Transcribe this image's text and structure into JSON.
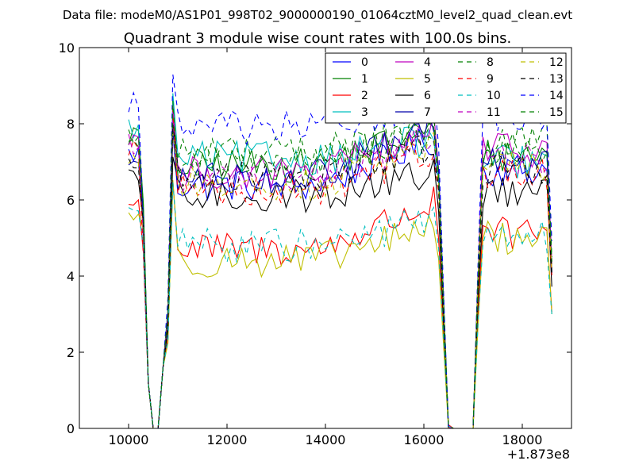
{
  "figure": {
    "suptitle": "Data file: modeM0/AS1P01_998T02_9000000190_01064cztM0_level2_quad_clean.evt",
    "offset_label": "+1.873e8"
  },
  "chart_data": {
    "type": "line",
    "title": "Quadrant 3 module wise count rates with 100.0s bins.",
    "xlabel": "",
    "ylabel": "",
    "xlim": [
      9000,
      19000
    ],
    "ylim": [
      0,
      10
    ],
    "x_ticks": [
      10000,
      12000,
      14000,
      16000,
      18000
    ],
    "y_ticks": [
      0,
      2,
      4,
      6,
      8,
      10
    ],
    "x_tick_labels": [
      "10000",
      "12000",
      "14000",
      "16000",
      "18000"
    ],
    "y_tick_labels": [
      "0",
      "2",
      "4",
      "6",
      "8",
      "10"
    ],
    "x_offset": 187300000,
    "legend_position": "upper-right",
    "legend_columns": 4,
    "segments": [
      {
        "start": 10000,
        "end": 10300,
        "step": 100
      },
      {
        "start": 10400,
        "end": 10700,
        "step": 100,
        "dropout": true
      },
      {
        "start": 10800,
        "end": 16200,
        "step": 100
      },
      {
        "start": 16300,
        "end": 16500,
        "step": 100,
        "fall": true
      },
      {
        "start": 16600,
        "end": 17000,
        "step": 100,
        "dropout": true
      },
      {
        "start": 17100,
        "end": 18600,
        "step": 100
      }
    ],
    "series": [
      {
        "name": "0",
        "color": "#0000ff",
        "dash": "solid",
        "levels": {
          "first": 7.2,
          "main": 6.4,
          "late": 7.6,
          "tail": 6.8
        }
      },
      {
        "name": "1",
        "color": "#008000",
        "dash": "solid",
        "levels": {
          "first": 7.7,
          "main": 6.9,
          "late": 7.9,
          "tail": 7.2
        }
      },
      {
        "name": "2",
        "color": "#ff0000",
        "dash": "solid",
        "levels": {
          "first": 5.9,
          "main": 4.7,
          "late": 5.9,
          "tail": 5.1
        }
      },
      {
        "name": "3",
        "color": "#00bfbf",
        "dash": "solid",
        "levels": {
          "first": 7.9,
          "main": 7.1,
          "late": 7.6,
          "tail": 7.0
        }
      },
      {
        "name": "4",
        "color": "#bf00bf",
        "dash": "solid",
        "levels": {
          "first": 7.6,
          "main": 6.7,
          "late": 7.9,
          "tail": 7.3
        }
      },
      {
        "name": "5",
        "color": "#bfbf00",
        "dash": "solid",
        "levels": {
          "first": 5.6,
          "main": 4.4,
          "late": 5.3,
          "tail": 5.0
        }
      },
      {
        "name": "6",
        "color": "#000000",
        "dash": "solid",
        "levels": {
          "first": 6.5,
          "main": 6.1,
          "late": 6.7,
          "tail": 6.2
        }
      },
      {
        "name": "7",
        "color": "#0000aa",
        "dash": "solid",
        "levels": {
          "first": 7.0,
          "main": 6.6,
          "late": 7.9,
          "tail": 6.9
        }
      },
      {
        "name": "8",
        "color": "#008000",
        "dash": "dashed",
        "levels": {
          "first": 7.7,
          "main": 7.3,
          "late": 7.9,
          "tail": 7.5
        }
      },
      {
        "name": "9",
        "color": "#ff0000",
        "dash": "dashed",
        "levels": {
          "first": 7.4,
          "main": 6.3,
          "late": 7.3,
          "tail": 6.7
        }
      },
      {
        "name": "10",
        "color": "#00bfbf",
        "dash": "dashed",
        "levels": {
          "first": 5.8,
          "main": 4.8,
          "late": 5.5,
          "tail": 5.0
        }
      },
      {
        "name": "11",
        "color": "#bf00bf",
        "dash": "dashed",
        "levels": {
          "first": 7.5,
          "main": 6.6,
          "late": 7.7,
          "tail": 7.1
        }
      },
      {
        "name": "12",
        "color": "#bfbf00",
        "dash": "dashed",
        "levels": {
          "first": 7.1,
          "main": 6.4,
          "late": 7.5,
          "tail": 6.9
        }
      },
      {
        "name": "13",
        "color": "#000000",
        "dash": "dashed",
        "levels": {
          "first": 7.0,
          "main": 6.6,
          "late": 7.4,
          "tail": 6.8
        }
      },
      {
        "name": "14",
        "color": "#0000ff",
        "dash": "dashed",
        "levels": {
          "first": 8.6,
          "main": 7.9,
          "late": 8.6,
          "tail": 8.2
        }
      },
      {
        "name": "15",
        "color": "#008000",
        "dash": "dashed",
        "levels": {
          "first": 7.6,
          "main": 7.0,
          "late": 7.8,
          "tail": 7.3
        }
      }
    ]
  }
}
